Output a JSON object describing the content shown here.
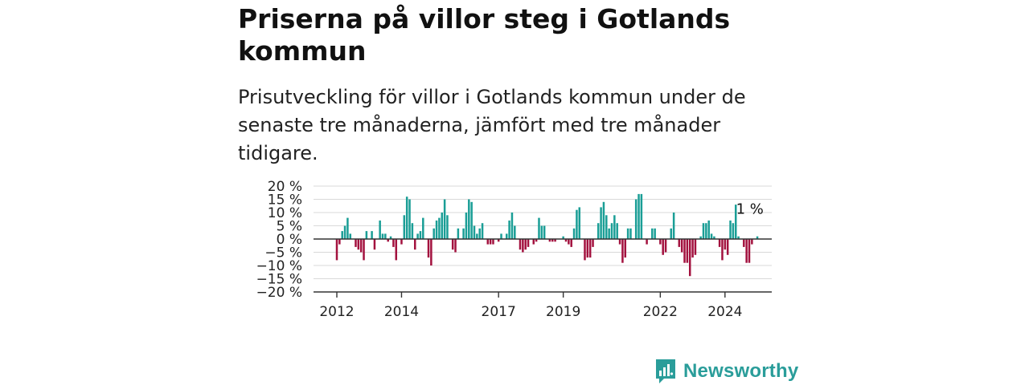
{
  "title": "Priserna på villor steg i Gotlands kommun",
  "subtitle": "Prisutveckling för villor i Gotlands kommun under de senaste tre månaderna, jämfört med tre månader tidigare.",
  "brand": {
    "name": "Newsworthy",
    "icon": "newsworthy-logo-icon",
    "color": "#2a9d9a"
  },
  "colors": {
    "positive": "#1a9e96",
    "negative": "#a3123f",
    "grid": "#d9d9d9",
    "axis": "#333333"
  },
  "chart_data": {
    "type": "bar",
    "ylim": [
      -20,
      20
    ],
    "y_ticks": [
      20,
      15,
      10,
      5,
      0,
      -5,
      -10,
      -15,
      -20
    ],
    "y_tick_labels": [
      "20 %",
      "15 %",
      "10 %",
      "5 %",
      "0 %",
      "−5 %",
      "−10 %",
      "−15 %",
      "−20 %"
    ],
    "x_ticks": [
      {
        "label": "2012",
        "index": 0
      },
      {
        "label": "2014",
        "index": 24
      },
      {
        "label": "2017",
        "index": 60
      },
      {
        "label": "2019",
        "index": 84
      },
      {
        "label": "2022",
        "index": 120
      },
      {
        "label": "2024",
        "index": 144
      }
    ],
    "annotation": {
      "text": "1 %",
      "index": 155
    },
    "grid": true,
    "values": [
      -8,
      -2,
      3,
      5,
      8,
      2,
      0,
      -3,
      -4,
      -5,
      -8,
      3,
      0,
      3,
      -4,
      0,
      7,
      2,
      2,
      -1,
      1,
      -3,
      -8,
      0,
      -2,
      9,
      16,
      15,
      6,
      -4,
      2,
      3,
      8,
      0,
      -7,
      -10,
      4,
      7,
      8,
      10,
      15,
      9,
      0,
      -4,
      -5,
      4,
      0,
      4,
      10,
      15,
      14,
      5,
      2,
      4,
      6,
      0,
      -2,
      -2,
      -2,
      0,
      -1,
      2,
      0,
      2,
      7,
      10,
      5,
      0,
      -4,
      -5,
      -4,
      -3,
      0,
      -2,
      -1,
      8,
      5,
      5,
      0,
      -1,
      -1,
      -1,
      0,
      0,
      1,
      -1,
      -2,
      -3,
      4,
      11,
      12,
      0,
      -8,
      -7,
      -7,
      -3,
      0,
      6,
      12,
      14,
      9,
      4,
      6,
      9,
      6,
      -2,
      -9,
      -7,
      4,
      4,
      0,
      15,
      17,
      17,
      0,
      -2,
      0,
      4,
      4,
      0,
      -2,
      -6,
      -5,
      0,
      4,
      10,
      0,
      -3,
      -5,
      -9,
      -9,
      -14,
      -7,
      -6,
      0,
      1,
      6,
      6,
      7,
      2,
      1,
      0,
      -3,
      -8,
      -4,
      -6,
      7,
      6,
      13,
      1,
      0,
      -3,
      -9,
      -9,
      -2,
      0,
      1
    ]
  }
}
